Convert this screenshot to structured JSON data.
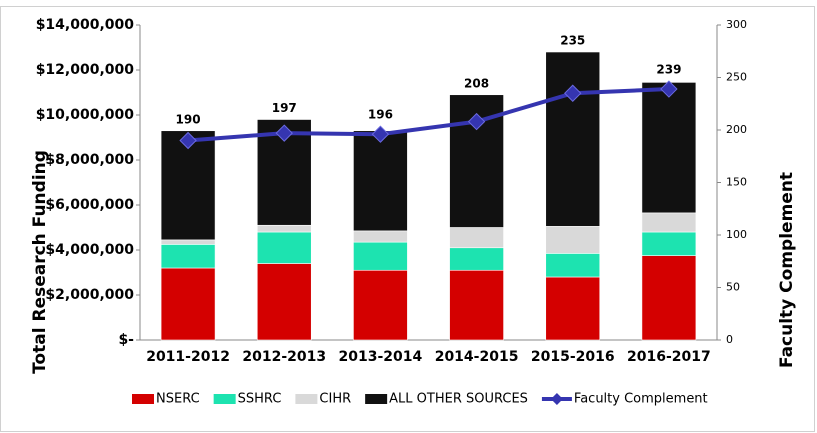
{
  "chart_data": {
    "type": "bar",
    "stacked": true,
    "y_label": "Total Research Funding",
    "y2_label": "Faculty Complement",
    "categories": [
      "2011-2012",
      "2012-2013",
      "2013-2014",
      "2014-2015",
      "2015-2016",
      "2016-2017"
    ],
    "series": [
      {
        "name": "NSERC",
        "color": "#d40000",
        "values": [
          3200000,
          3400000,
          3100000,
          3100000,
          2800000,
          3750000
        ]
      },
      {
        "name": "SSHRC",
        "color": "#1de3b0",
        "values": [
          1050000,
          1400000,
          1250000,
          1000000,
          1050000,
          1050000
        ]
      },
      {
        "name": "CIHR",
        "color": "#d9d9d9",
        "values": [
          200000,
          300000,
          500000,
          900000,
          1200000,
          850000
        ]
      },
      {
        "name": "ALL OTHER SOURCES",
        "color": "#111111",
        "values": [
          4850000,
          4700000,
          4450000,
          5900000,
          7750000,
          5800000
        ]
      },
      {
        "name": "Faculty Complement",
        "color": "#3535b0",
        "type": "line",
        "axis": "y2",
        "values": [
          190,
          197,
          196,
          208,
          235,
          239
        ]
      }
    ],
    "ylim": [
      0,
      14000000
    ],
    "yticks": [
      {
        "value": 0,
        "label": "$-"
      },
      {
        "value": 2000000,
        "label": "$2,000,000"
      },
      {
        "value": 4000000,
        "label": "$4,000,000"
      },
      {
        "value": 6000000,
        "label": "$6,000,000"
      },
      {
        "value": 8000000,
        "label": "$8,000,000"
      },
      {
        "value": 10000000,
        "label": "$10,000,000"
      },
      {
        "value": 12000000,
        "label": "$12,000,000"
      },
      {
        "value": 14000000,
        "label": "$14,000,000"
      }
    ],
    "y2lim": [
      0,
      300
    ],
    "y2ticks": [
      0,
      50,
      100,
      150,
      200,
      250,
      300
    ],
    "grid": false,
    "legend": "bottom"
  }
}
